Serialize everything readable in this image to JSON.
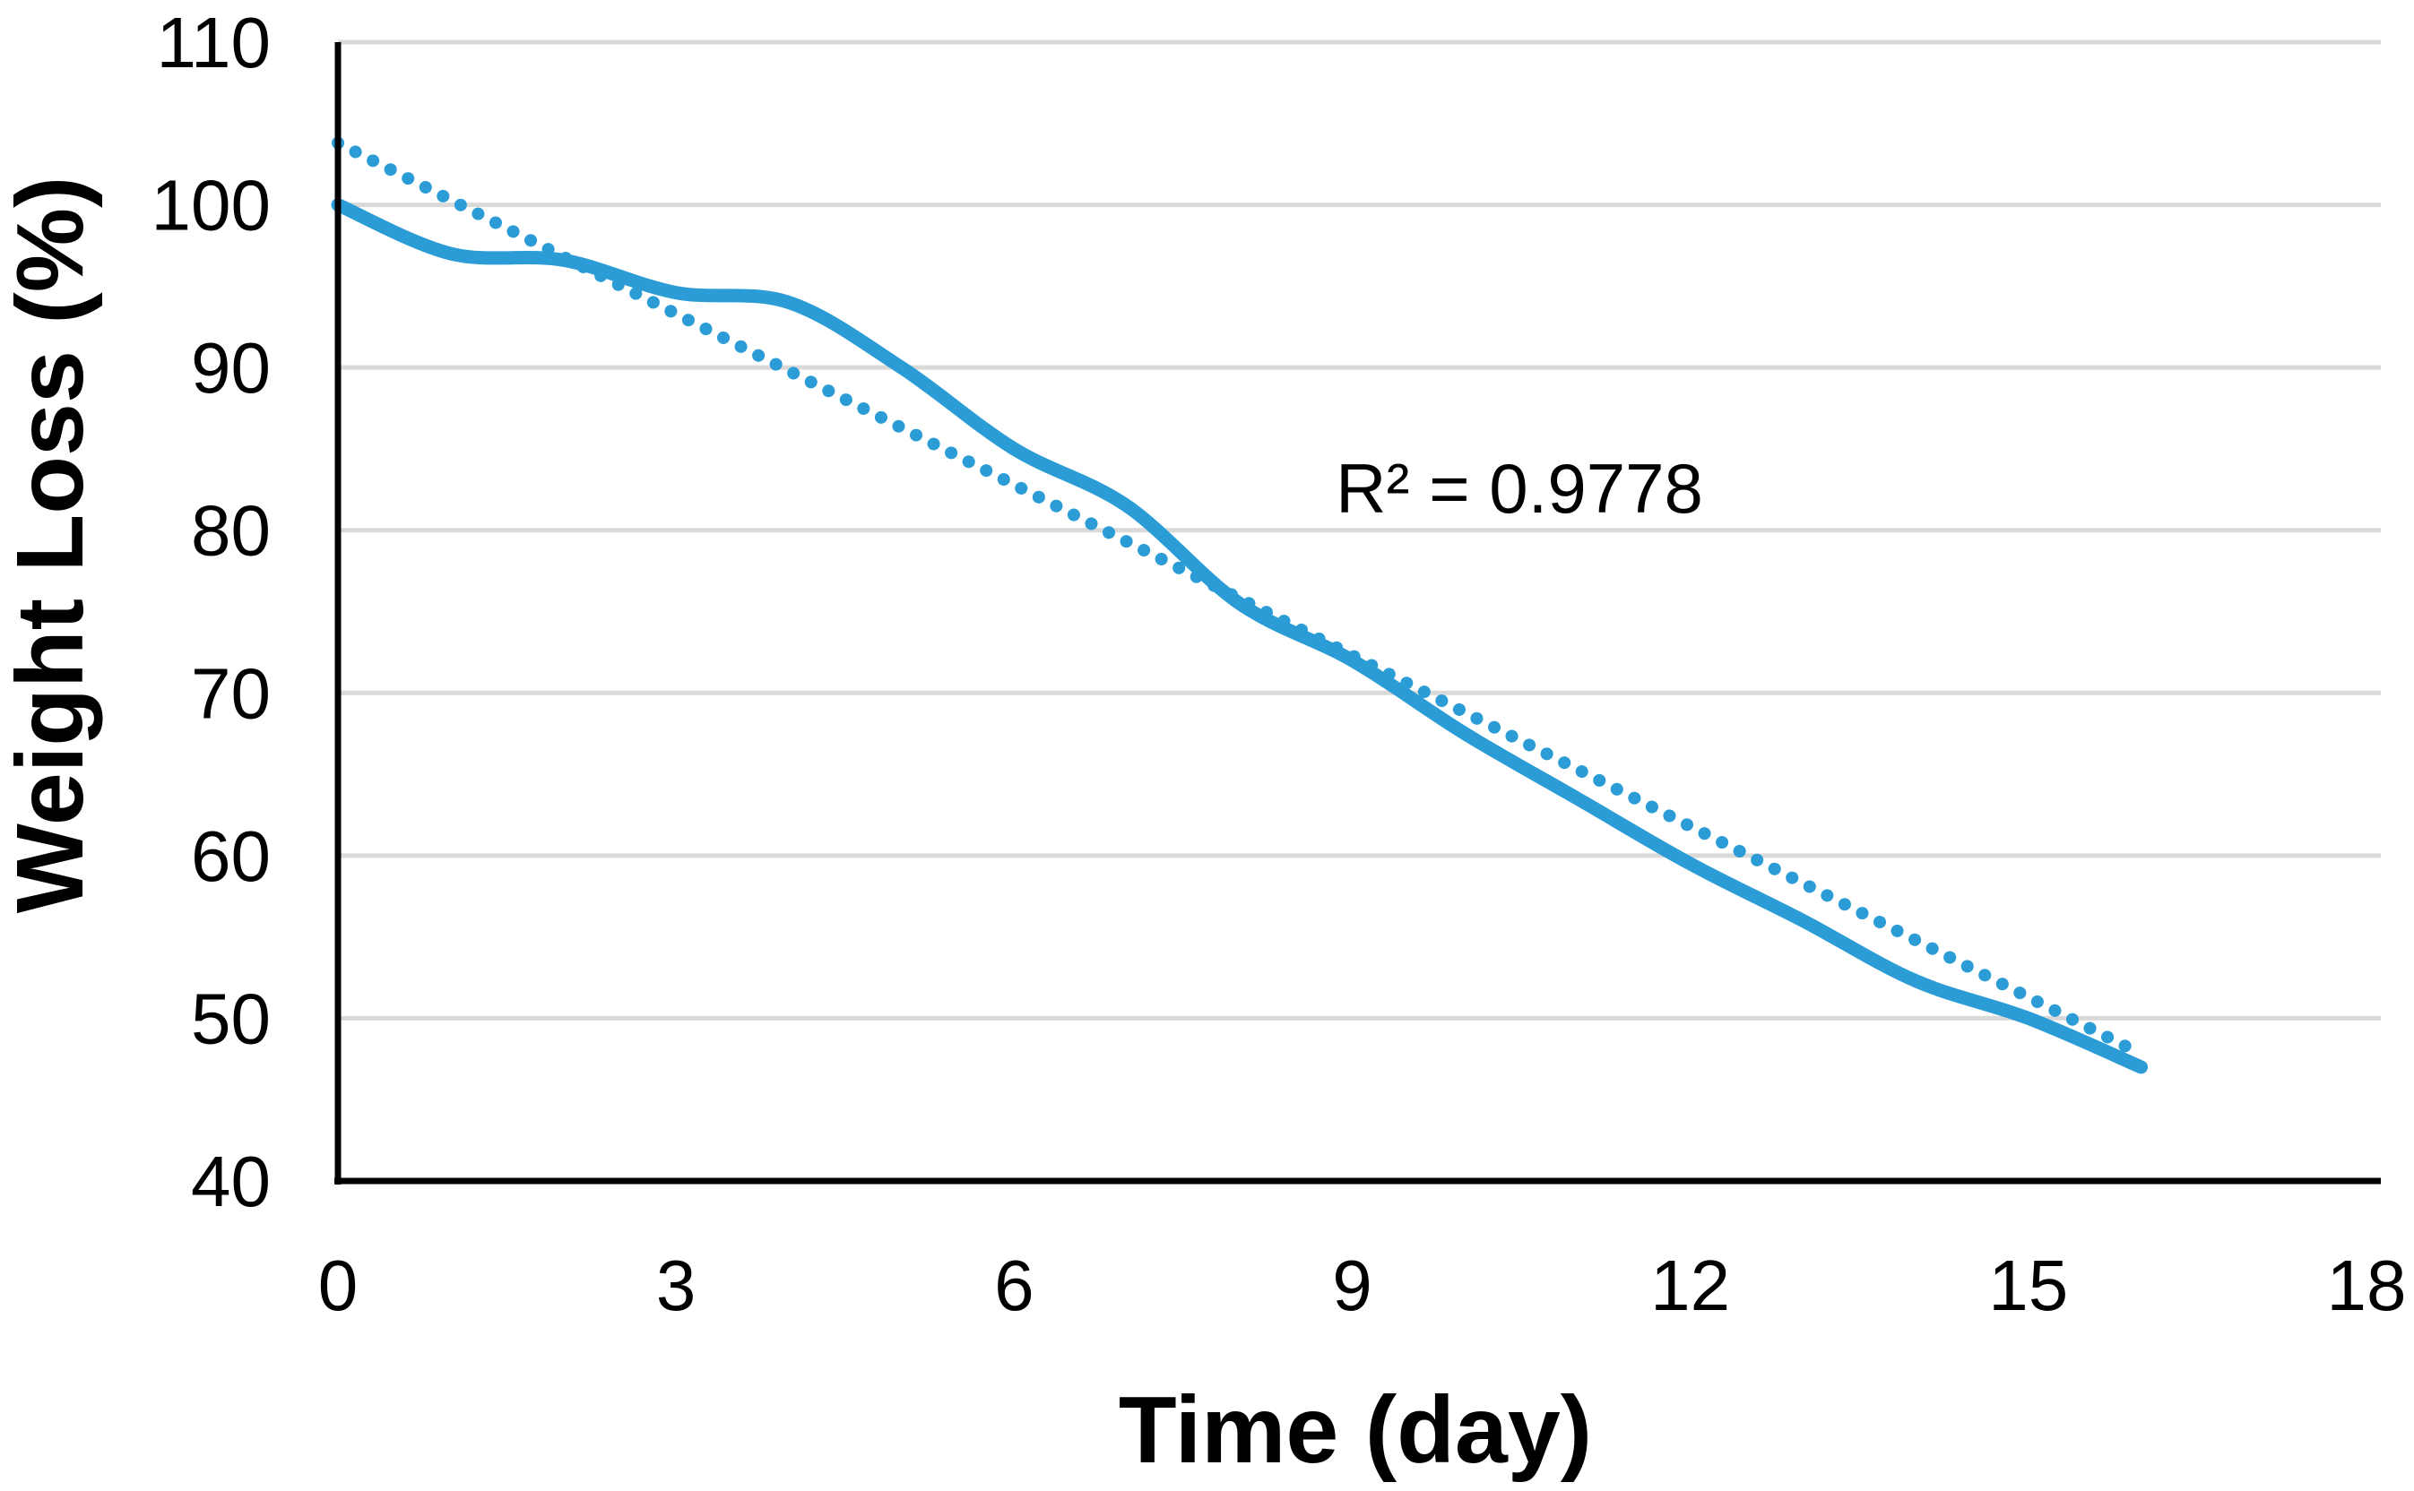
{
  "page": {
    "background": "#FFFFFF"
  },
  "chart_data": {
    "type": "line",
    "title": "",
    "xlabel": "Time (day)",
    "ylabel": "Weight Loss (%)",
    "annotation": "R² = 0.9778",
    "xlim": [
      0,
      18
    ],
    "ylim": [
      40,
      110
    ],
    "x_ticks": [
      0,
      3,
      6,
      9,
      12,
      15,
      18
    ],
    "y_ticks": [
      110,
      100,
      90,
      80,
      70,
      60,
      50,
      40
    ],
    "grid": "horizontal",
    "legend_position": "none",
    "series": [
      {
        "name": "weight-loss-measured",
        "style": "solid-smooth",
        "color": "#2B9CD6",
        "stroke_width": 15,
        "x": [
          0,
          1,
          2,
          3,
          4,
          5,
          6,
          7,
          8,
          9,
          10,
          11,
          12,
          13,
          14,
          15,
          16
        ],
        "values": [
          100,
          97,
          96.6,
          94.6,
          94,
          90,
          85,
          81.5,
          75.5,
          72,
          67.5,
          63.5,
          59.5,
          56,
          52.3,
          50,
          47
        ]
      },
      {
        "name": "linear-trendline",
        "style": "dotted",
        "color": "#2B9CD6",
        "stroke_width": 14,
        "x": [
          0,
          16
        ],
        "values": [
          103.8,
          47.8
        ]
      }
    ]
  },
  "colors": {
    "series_blue": "#2B9CD6",
    "gridline": "#D9D9D9",
    "axis": "#000000",
    "text": "#000000",
    "background": "#FFFFFF"
  }
}
